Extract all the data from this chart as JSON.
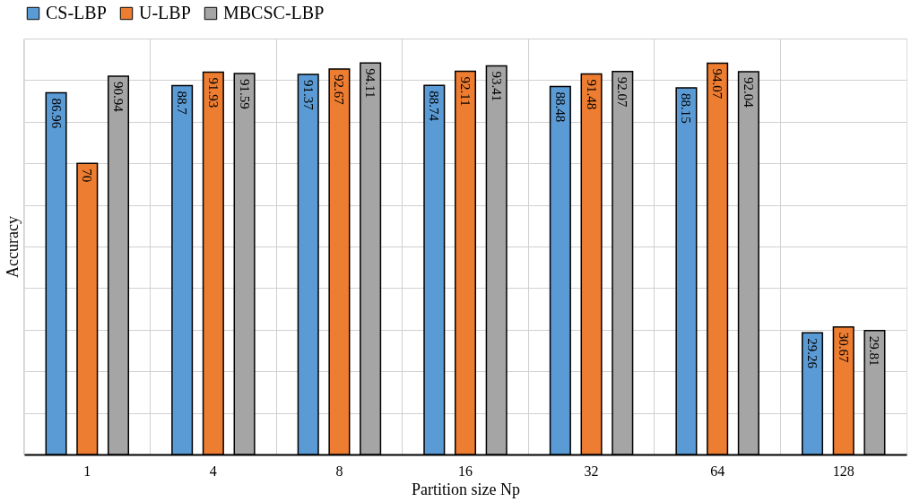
{
  "chart_data": {
    "type": "bar",
    "xlabel": "Partition size Np",
    "ylabel": "Accuracy",
    "categories": [
      "1",
      "4",
      "8",
      "16",
      "32",
      "64",
      "128"
    ],
    "series": [
      {
        "name": "CS-LBP",
        "color": "#5b9bd5",
        "values": [
          86.96,
          88.7,
          91.37,
          88.74,
          88.48,
          88.15,
          29.26
        ]
      },
      {
        "name": "U-LBP",
        "color": "#ed7d31",
        "values": [
          70,
          91.93,
          92.67,
          92.11,
          91.48,
          94.07,
          30.67
        ]
      },
      {
        "name": "MBCSC-LBP",
        "color": "#a5a5a5",
        "values": [
          90.94,
          91.59,
          94.11,
          93.41,
          92.07,
          92.04,
          29.81
        ]
      }
    ],
    "ylim": [
      0,
      100
    ],
    "yticks": [
      {
        "value": 0,
        "label": null
      },
      {
        "value": 10,
        "label": null
      },
      {
        "value": 20,
        "label": null
      },
      {
        "value": 30,
        "label": null
      },
      {
        "value": 40,
        "label": null
      },
      {
        "value": 50,
        "label": null
      },
      {
        "value": 60,
        "label": null
      },
      {
        "value": 70,
        "label": null
      },
      {
        "value": 80,
        "label": null
      },
      {
        "value": 90,
        "label": null
      },
      {
        "value": 100,
        "label": null
      }
    ],
    "tick_labels": "x",
    "grid": true,
    "legend": "top",
    "data_labels": true
  }
}
